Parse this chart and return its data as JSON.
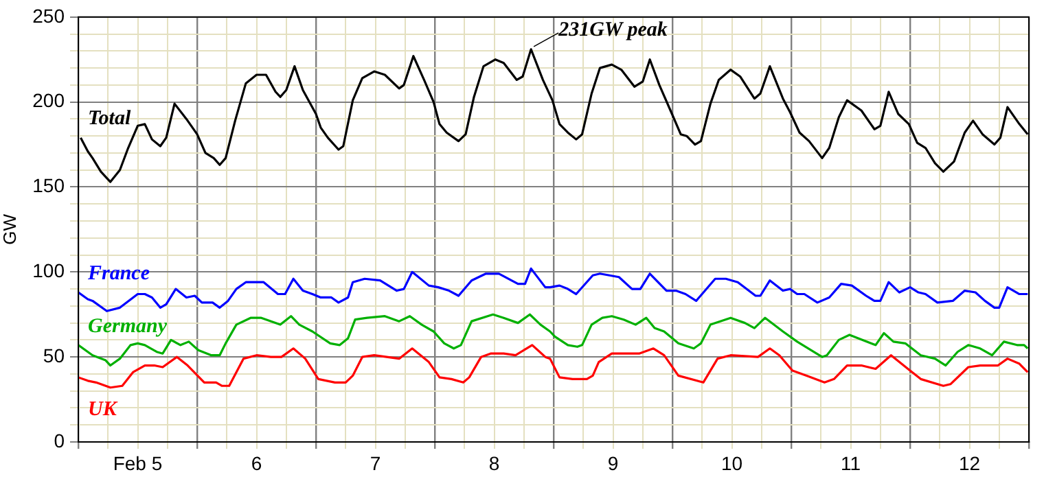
{
  "chart_data": {
    "type": "line",
    "ylabel": "GW",
    "xlim": [
      5,
      13
    ],
    "ylim": [
      0,
      250
    ],
    "grid": true,
    "legend": false,
    "xticks": [
      {
        "value": 5,
        "label": null
      },
      {
        "value": 5.25,
        "label": null
      },
      {
        "value": 5.5,
        "label": "Feb 5"
      },
      {
        "value": 5.75,
        "label": null
      },
      {
        "value": 6,
        "label": null
      },
      {
        "value": 6.25,
        "label": null
      },
      {
        "value": 6.5,
        "label": "6"
      },
      {
        "value": 6.75,
        "label": null
      },
      {
        "value": 7,
        "label": null
      },
      {
        "value": 7.25,
        "label": null
      },
      {
        "value": 7.5,
        "label": "7"
      },
      {
        "value": 7.75,
        "label": null
      },
      {
        "value": 8,
        "label": null
      },
      {
        "value": 8.25,
        "label": null
      },
      {
        "value": 8.5,
        "label": "8"
      },
      {
        "value": 8.75,
        "label": null
      },
      {
        "value": 9,
        "label": null
      },
      {
        "value": 9.25,
        "label": null
      },
      {
        "value": 9.5,
        "label": "9"
      },
      {
        "value": 9.75,
        "label": null
      },
      {
        "value": 10,
        "label": null
      },
      {
        "value": 10.25,
        "label": null
      },
      {
        "value": 10.5,
        "label": "10"
      },
      {
        "value": 10.75,
        "label": null
      },
      {
        "value": 11,
        "label": null
      },
      {
        "value": 11.25,
        "label": null
      },
      {
        "value": 11.5,
        "label": "11"
      },
      {
        "value": 11.75,
        "label": null
      },
      {
        "value": 12,
        "label": null
      },
      {
        "value": 12.25,
        "label": null
      },
      {
        "value": 12.5,
        "label": "12"
      },
      {
        "value": 12.75,
        "label": null
      },
      {
        "value": 13,
        "label": null
      }
    ],
    "yticks": [
      0,
      {
        "value": 10,
        "label": null
      },
      {
        "value": 20,
        "label": null
      },
      {
        "value": 30,
        "label": null
      },
      {
        "value": 40,
        "label": null
      },
      50,
      {
        "value": 60,
        "label": null
      },
      {
        "value": 70,
        "label": null
      },
      {
        "value": 80,
        "label": null
      },
      {
        "value": 90,
        "label": null
      },
      100,
      {
        "value": 110,
        "label": null
      },
      {
        "value": 120,
        "label": null
      },
      {
        "value": 130,
        "label": null
      },
      {
        "value": 140,
        "label": null
      },
      150,
      {
        "value": 160,
        "label": null
      },
      {
        "value": 170,
        "label": null
      },
      {
        "value": 180,
        "label": null
      },
      {
        "value": 190,
        "label": null
      },
      200,
      {
        "value": 210,
        "label": null
      },
      {
        "value": 220,
        "label": null
      },
      {
        "value": 230,
        "label": null
      },
      {
        "value": 240,
        "label": null
      },
      250
    ],
    "annotations": [
      {
        "text": "231GW peak",
        "x": 8.81,
        "y": 231
      }
    ],
    "series": [
      {
        "name": "Total",
        "color": "#000000",
        "x": [
          5.02,
          5.08,
          5.12,
          5.19,
          5.27,
          5.35,
          5.42,
          5.5,
          5.56,
          5.62,
          5.69,
          5.74,
          5.81,
          5.91,
          6.0,
          6.07,
          6.14,
          6.19,
          6.24,
          6.32,
          6.41,
          6.5,
          6.58,
          6.66,
          6.7,
          6.75,
          6.82,
          6.89,
          7.0,
          7.04,
          7.1,
          7.19,
          7.23,
          7.31,
          7.39,
          7.49,
          7.58,
          7.7,
          7.74,
          7.82,
          7.91,
          7.99,
          8.04,
          8.1,
          8.2,
          8.26,
          8.33,
          8.41,
          8.51,
          8.58,
          8.69,
          8.74,
          8.81,
          8.91,
          8.99,
          9.05,
          9.12,
          9.19,
          9.24,
          9.32,
          9.39,
          9.49,
          9.57,
          9.68,
          9.75,
          9.81,
          9.89,
          9.99,
          10.07,
          10.12,
          10.19,
          10.24,
          10.32,
          10.39,
          10.49,
          10.57,
          10.69,
          10.74,
          10.82,
          10.93,
          10.99,
          11.07,
          11.15,
          11.26,
          11.32,
          11.4,
          11.47,
          11.59,
          11.7,
          11.75,
          11.82,
          11.9,
          11.99,
          12.06,
          12.13,
          12.21,
          12.28,
          12.37,
          12.46,
          12.53,
          12.61,
          12.71,
          12.76,
          12.82,
          12.92,
          12.99
        ],
        "values": [
          179,
          171,
          167,
          159,
          153,
          160,
          173,
          186,
          187,
          178,
          174,
          179,
          199,
          190,
          181,
          170,
          167,
          163,
          167,
          189,
          211,
          216,
          216,
          206,
          203,
          207,
          221,
          207,
          193,
          185,
          179,
          172,
          174,
          201,
          214,
          218,
          216,
          208,
          210,
          227,
          213,
          200,
          187,
          182,
          177,
          181,
          203,
          221,
          225,
          223,
          213,
          215,
          231,
          213,
          201,
          187,
          182,
          178,
          181,
          205,
          220,
          222,
          219,
          209,
          212,
          225,
          210,
          194,
          181,
          180,
          175,
          177,
          199,
          213,
          219,
          215,
          202,
          205,
          221,
          202,
          194,
          182,
          177,
          167,
          173,
          191,
          201,
          195,
          184,
          186,
          206,
          193,
          187,
          176,
          173,
          164,
          159,
          165,
          182,
          189,
          181,
          175,
          179,
          197,
          187,
          181
        ]
      },
      {
        "name": "France",
        "color": "#0000ff",
        "x": [
          5.0,
          5.08,
          5.12,
          5.24,
          5.35,
          5.5,
          5.56,
          5.62,
          5.69,
          5.74,
          5.82,
          5.91,
          5.98,
          6.04,
          6.13,
          6.19,
          6.26,
          6.33,
          6.41,
          6.56,
          6.68,
          6.74,
          6.81,
          6.89,
          6.97,
          7.04,
          7.13,
          7.19,
          7.27,
          7.31,
          7.41,
          7.54,
          7.68,
          7.74,
          7.81,
          7.95,
          8.03,
          8.12,
          8.2,
          8.31,
          8.43,
          8.54,
          8.7,
          8.76,
          8.81,
          8.93,
          8.97,
          9.05,
          9.12,
          9.19,
          9.33,
          9.39,
          9.55,
          9.66,
          9.73,
          9.81,
          9.95,
          10.03,
          10.11,
          10.2,
          10.36,
          10.45,
          10.55,
          10.7,
          10.74,
          10.82,
          10.93,
          10.99,
          11.05,
          11.11,
          11.22,
          11.32,
          11.42,
          11.51,
          11.63,
          11.7,
          11.75,
          11.82,
          11.91,
          12.0,
          12.07,
          12.13,
          12.23,
          12.36,
          12.46,
          12.55,
          12.63,
          12.71,
          12.75,
          12.82,
          12.92,
          12.99
        ],
        "values": [
          88,
          84,
          83,
          77,
          79,
          87,
          87,
          85,
          79,
          81,
          90,
          85,
          86,
          82,
          82,
          79,
          83,
          90,
          94,
          94,
          87,
          87,
          96,
          89,
          87,
          85,
          85,
          82,
          85,
          94,
          96,
          95,
          89,
          90,
          100,
          92,
          91,
          89,
          86,
          95,
          99,
          99,
          93,
          93,
          102,
          91,
          91,
          92,
          90,
          87,
          98,
          99,
          97,
          90,
          90,
          99,
          89,
          89,
          87,
          83,
          96,
          96,
          94,
          86,
          86,
          95,
          89,
          90,
          87,
          87,
          82,
          85,
          93,
          92,
          86,
          83,
          83,
          94,
          88,
          91,
          88,
          87,
          82,
          83,
          89,
          88,
          83,
          79,
          79,
          91,
          87,
          87
        ]
      },
      {
        "name": "Germany",
        "color": "#00b000",
        "x": [
          5.0,
          5.12,
          5.23,
          5.27,
          5.35,
          5.44,
          5.5,
          5.56,
          5.66,
          5.71,
          5.78,
          5.86,
          5.93,
          6.01,
          6.12,
          6.19,
          6.24,
          6.33,
          6.45,
          6.54,
          6.7,
          6.79,
          6.86,
          6.97,
          7.12,
          7.2,
          7.27,
          7.33,
          7.43,
          7.58,
          7.7,
          7.79,
          7.89,
          7.99,
          8.08,
          8.16,
          8.22,
          8.31,
          8.49,
          8.58,
          8.7,
          8.8,
          8.89,
          8.97,
          9.01,
          9.12,
          9.2,
          9.24,
          9.32,
          9.41,
          9.49,
          9.59,
          9.69,
          9.78,
          9.85,
          9.93,
          10.05,
          10.18,
          10.24,
          10.32,
          10.49,
          10.61,
          10.69,
          10.78,
          10.93,
          11.05,
          11.26,
          11.3,
          11.4,
          11.49,
          11.71,
          11.78,
          11.86,
          11.96,
          12.09,
          12.21,
          12.3,
          12.4,
          12.49,
          12.59,
          12.69,
          12.79,
          12.9,
          12.96,
          12.99
        ],
        "values": [
          57,
          51,
          48,
          45,
          49,
          57,
          58,
          57,
          53,
          52,
          60,
          57,
          59,
          54,
          51,
          51,
          58,
          69,
          73,
          73,
          69,
          74,
          69,
          65,
          58,
          57,
          61,
          72,
          73,
          74,
          71,
          74,
          69,
          65,
          58,
          55,
          57,
          71,
          75,
          73,
          70,
          75,
          69,
          65,
          62,
          57,
          56,
          57,
          69,
          73,
          74,
          72,
          69,
          73,
          67,
          65,
          58,
          55,
          58,
          69,
          73,
          70,
          67,
          73,
          65,
          59,
          50,
          51,
          60,
          63,
          57,
          64,
          59,
          58,
          51,
          49,
          45,
          53,
          57,
          55,
          51,
          59,
          57,
          57,
          55
        ]
      },
      {
        "name": "UK",
        "color": "#ff0000",
        "x": [
          5.0,
          5.08,
          5.15,
          5.27,
          5.37,
          5.46,
          5.56,
          5.64,
          5.71,
          5.83,
          5.92,
          6.06,
          6.16,
          6.21,
          6.27,
          6.39,
          6.5,
          6.62,
          6.71,
          6.81,
          6.91,
          7.02,
          7.16,
          7.25,
          7.31,
          7.39,
          7.49,
          7.7,
          7.81,
          7.95,
          8.04,
          8.14,
          8.24,
          8.29,
          8.39,
          8.47,
          8.58,
          8.68,
          8.82,
          8.93,
          8.97,
          9.05,
          9.16,
          9.28,
          9.33,
          9.38,
          9.49,
          9.72,
          9.84,
          9.93,
          10.05,
          10.26,
          10.38,
          10.49,
          10.72,
          10.82,
          10.9,
          11.01,
          11.13,
          11.28,
          11.36,
          11.47,
          11.59,
          11.71,
          11.84,
          12.0,
          12.09,
          12.28,
          12.34,
          12.49,
          12.59,
          12.74,
          12.82,
          12.92,
          12.99
        ],
        "values": [
          38,
          36,
          35,
          32,
          33,
          41,
          45,
          45,
          44,
          50,
          45,
          35,
          35,
          33,
          33,
          49,
          51,
          50,
          50,
          55,
          49,
          37,
          35,
          35,
          39,
          50,
          51,
          49,
          55,
          47,
          38,
          37,
          35,
          38,
          50,
          52,
          52,
          51,
          57,
          50,
          49,
          38,
          37,
          37,
          39,
          47,
          52,
          52,
          55,
          51,
          39,
          35,
          49,
          51,
          50,
          55,
          51,
          42,
          39,
          35,
          37,
          45,
          45,
          43,
          51,
          42,
          37,
          33,
          34,
          44,
          45,
          45,
          49,
          46,
          41
        ]
      }
    ]
  }
}
